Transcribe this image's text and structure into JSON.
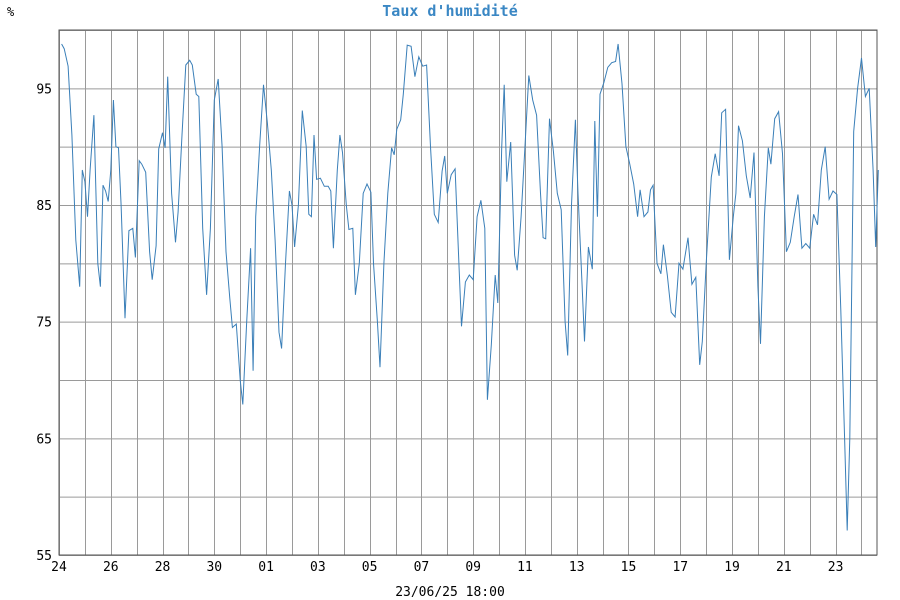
{
  "chart_data": {
    "type": "line",
    "title": "Taux d'humidité",
    "unit": "%",
    "xlabel": "23/06/25 18:00",
    "ylim": [
      55,
      100
    ],
    "y_ticks": [
      55,
      65,
      75,
      85,
      95
    ],
    "y_gridlines": [
      55,
      60,
      65,
      70,
      75,
      80,
      85,
      90,
      95,
      100
    ],
    "x_range": [
      0,
      31.6
    ],
    "x_ticks": [
      {
        "x": 0,
        "label": "24"
      },
      {
        "x": 2,
        "label": "26"
      },
      {
        "x": 4,
        "label": "28"
      },
      {
        "x": 6,
        "label": "30"
      },
      {
        "x": 8,
        "label": "01"
      },
      {
        "x": 10,
        "label": "03"
      },
      {
        "x": 12,
        "label": "05"
      },
      {
        "x": 14,
        "label": "07"
      },
      {
        "x": 16,
        "label": "09"
      },
      {
        "x": 18,
        "label": "11"
      },
      {
        "x": 20,
        "label": "13"
      },
      {
        "x": 22,
        "label": "15"
      },
      {
        "x": 24,
        "label": "17"
      },
      {
        "x": 26,
        "label": "19"
      },
      {
        "x": 28,
        "label": "21"
      },
      {
        "x": 30,
        "label": "23"
      }
    ],
    "grid": true,
    "series": [
      {
        "color": "#3a7fb8",
        "points": [
          [
            0.1,
            98.8
          ],
          [
            0.2,
            98.4
          ],
          [
            0.35,
            96.9
          ],
          [
            0.5,
            91
          ],
          [
            0.65,
            82
          ],
          [
            0.8,
            78
          ],
          [
            0.9,
            88
          ],
          [
            1.0,
            87
          ],
          [
            1.1,
            84
          ],
          [
            1.2,
            88
          ],
          [
            1.35,
            92.7
          ],
          [
            1.5,
            80
          ],
          [
            1.6,
            78
          ],
          [
            1.7,
            86.7
          ],
          [
            1.8,
            86.2
          ],
          [
            1.9,
            85.3
          ],
          [
            2.0,
            88
          ],
          [
            2.1,
            94
          ],
          [
            2.2,
            90
          ],
          [
            2.3,
            89.9
          ],
          [
            2.4,
            85
          ],
          [
            2.55,
            75.3
          ],
          [
            2.7,
            82.8
          ],
          [
            2.85,
            83
          ],
          [
            2.95,
            80.5
          ],
          [
            3.1,
            88.8
          ],
          [
            3.2,
            88.5
          ],
          [
            3.35,
            87.8
          ],
          [
            3.5,
            81
          ],
          [
            3.6,
            78.6
          ],
          [
            3.75,
            81.5
          ],
          [
            3.85,
            89.8
          ],
          [
            4.0,
            91.2
          ],
          [
            4.1,
            89.9
          ],
          [
            4.2,
            96
          ],
          [
            4.35,
            86
          ],
          [
            4.5,
            81.8
          ],
          [
            4.6,
            84.4
          ],
          [
            4.75,
            91
          ],
          [
            4.9,
            97
          ],
          [
            5.05,
            97.4
          ],
          [
            5.15,
            97
          ],
          [
            5.3,
            94.5
          ],
          [
            5.4,
            94.3
          ],
          [
            5.55,
            83
          ],
          [
            5.7,
            77.3
          ],
          [
            5.85,
            83
          ],
          [
            6.0,
            94
          ],
          [
            6.15,
            95.8
          ],
          [
            6.3,
            90
          ],
          [
            6.45,
            81
          ],
          [
            6.6,
            77
          ],
          [
            6.7,
            74.5
          ],
          [
            6.85,
            74.8
          ],
          [
            7.0,
            70
          ],
          [
            7.1,
            67.9
          ],
          [
            7.25,
            75
          ],
          [
            7.4,
            81.3
          ],
          [
            7.5,
            70.8
          ],
          [
            7.6,
            84
          ],
          [
            7.75,
            90
          ],
          [
            7.9,
            95.3
          ],
          [
            8.05,
            92
          ],
          [
            8.2,
            88
          ],
          [
            8.35,
            82
          ],
          [
            8.5,
            74.1
          ],
          [
            8.6,
            72.7
          ],
          [
            8.75,
            80
          ],
          [
            8.9,
            86.2
          ],
          [
            9.0,
            85
          ],
          [
            9.1,
            81.4
          ],
          [
            9.25,
            85
          ],
          [
            9.4,
            93.1
          ],
          [
            9.55,
            90
          ],
          [
            9.65,
            84.2
          ],
          [
            9.75,
            84
          ],
          [
            9.85,
            91
          ],
          [
            9.95,
            87.2
          ],
          [
            10.1,
            87.3
          ],
          [
            10.25,
            86.6
          ],
          [
            10.4,
            86.6
          ],
          [
            10.5,
            86.2
          ],
          [
            10.6,
            81.3
          ],
          [
            10.75,
            88
          ],
          [
            10.85,
            91
          ],
          [
            10.95,
            89.5
          ],
          [
            11.1,
            85
          ],
          [
            11.2,
            82.9
          ],
          [
            11.35,
            83
          ],
          [
            11.45,
            77.3
          ],
          [
            11.6,
            80
          ],
          [
            11.75,
            86
          ],
          [
            11.9,
            86.8
          ],
          [
            12.05,
            86.1
          ],
          [
            12.15,
            80
          ],
          [
            12.3,
            75
          ],
          [
            12.4,
            71.1
          ],
          [
            12.55,
            80
          ],
          [
            12.7,
            86
          ],
          [
            12.85,
            89.9
          ],
          [
            12.95,
            89.3
          ],
          [
            13.05,
            91.5
          ],
          [
            13.2,
            92.3
          ],
          [
            13.3,
            94.5
          ],
          [
            13.45,
            98.7
          ],
          [
            13.6,
            98.6
          ],
          [
            13.75,
            96
          ],
          [
            13.9,
            97.7
          ],
          [
            14.05,
            96.9
          ],
          [
            14.2,
            97
          ],
          [
            14.35,
            90
          ],
          [
            14.5,
            84.2
          ],
          [
            14.65,
            83.5
          ],
          [
            14.8,
            87.9
          ],
          [
            14.9,
            89.2
          ],
          [
            15.0,
            86
          ],
          [
            15.15,
            87.6
          ],
          [
            15.3,
            88.1
          ],
          [
            15.45,
            80
          ],
          [
            15.55,
            74.6
          ],
          [
            15.7,
            78.4
          ],
          [
            15.85,
            79
          ],
          [
            16.0,
            78.6
          ],
          [
            16.15,
            84
          ],
          [
            16.3,
            85.4
          ],
          [
            16.45,
            83
          ],
          [
            16.55,
            68.3
          ],
          [
            16.7,
            73
          ],
          [
            16.85,
            79
          ],
          [
            16.95,
            76.6
          ],
          [
            17.1,
            89.9
          ],
          [
            17.2,
            95.3
          ],
          [
            17.3,
            87
          ],
          [
            17.45,
            90.4
          ],
          [
            17.6,
            80.7
          ],
          [
            17.7,
            79.4
          ],
          [
            17.85,
            84
          ],
          [
            18.0,
            89.9
          ],
          [
            18.15,
            96.1
          ],
          [
            18.3,
            94
          ],
          [
            18.45,
            92.7
          ],
          [
            18.6,
            86
          ],
          [
            18.7,
            82.2
          ],
          [
            18.8,
            82.1
          ],
          [
            18.95,
            92.4
          ],
          [
            19.1,
            89.6
          ],
          [
            19.25,
            86
          ],
          [
            19.4,
            84.6
          ],
          [
            19.55,
            75
          ],
          [
            19.65,
            72.1
          ],
          [
            19.8,
            85
          ],
          [
            19.95,
            92.3
          ],
          [
            20.05,
            86
          ],
          [
            20.2,
            78.5
          ],
          [
            20.3,
            73.3
          ],
          [
            20.45,
            81.4
          ],
          [
            20.6,
            79.5
          ],
          [
            20.7,
            92.2
          ],
          [
            20.8,
            84
          ],
          [
            20.9,
            94.5
          ],
          [
            21.05,
            95.5
          ],
          [
            21.2,
            96.8
          ],
          [
            21.35,
            97.2
          ],
          [
            21.5,
            97.3
          ],
          [
            21.6,
            98.8
          ],
          [
            21.75,
            95.4
          ],
          [
            21.9,
            90
          ],
          [
            22.05,
            88.5
          ],
          [
            22.2,
            86.8
          ],
          [
            22.35,
            84
          ],
          [
            22.45,
            86.3
          ],
          [
            22.6,
            84
          ],
          [
            22.75,
            84.4
          ],
          [
            22.85,
            86.3
          ],
          [
            22.95,
            86.7
          ],
          [
            23.1,
            80
          ],
          [
            23.25,
            79.1
          ],
          [
            23.35,
            81.6
          ],
          [
            23.5,
            79
          ],
          [
            23.65,
            75.8
          ],
          [
            23.8,
            75.4
          ],
          [
            23.95,
            80
          ],
          [
            24.1,
            79.5
          ],
          [
            24.3,
            82.2
          ],
          [
            24.45,
            78.2
          ],
          [
            24.6,
            78.8
          ],
          [
            24.75,
            71.3
          ],
          [
            24.85,
            73.3
          ],
          [
            25.0,
            80
          ],
          [
            25.2,
            87.4
          ],
          [
            25.35,
            89.4
          ],
          [
            25.5,
            87.5
          ],
          [
            25.6,
            92.9
          ],
          [
            25.75,
            93.2
          ],
          [
            25.9,
            80.3
          ],
          [
            26.05,
            84
          ],
          [
            26.15,
            86
          ],
          [
            26.25,
            91.8
          ],
          [
            26.4,
            90.5
          ],
          [
            26.55,
            87.5
          ],
          [
            26.7,
            85.6
          ],
          [
            26.85,
            89.5
          ],
          [
            27.0,
            78
          ],
          [
            27.1,
            73.1
          ],
          [
            27.25,
            84
          ],
          [
            27.4,
            89.9
          ],
          [
            27.5,
            88.5
          ],
          [
            27.65,
            92.4
          ],
          [
            27.8,
            93
          ],
          [
            27.95,
            89.4
          ],
          [
            28.1,
            81
          ],
          [
            28.25,
            81.8
          ],
          [
            28.4,
            84
          ],
          [
            28.55,
            85.9
          ],
          [
            28.7,
            81.3
          ],
          [
            28.85,
            81.7
          ],
          [
            29.0,
            81.3
          ],
          [
            29.15,
            84.2
          ],
          [
            29.3,
            83.3
          ],
          [
            29.45,
            88
          ],
          [
            29.6,
            90
          ],
          [
            29.75,
            85.5
          ],
          [
            29.9,
            86.2
          ],
          [
            30.05,
            85.9
          ],
          [
            30.2,
            76
          ],
          [
            30.35,
            65
          ],
          [
            30.45,
            57.1
          ],
          [
            30.55,
            65
          ],
          [
            30.7,
            91.3
          ],
          [
            30.85,
            95
          ],
          [
            31.0,
            97.6
          ],
          [
            31.15,
            94.3
          ],
          [
            31.3,
            95
          ],
          [
            31.45,
            88
          ],
          [
            31.55,
            81.4
          ],
          [
            31.65,
            88
          ]
        ]
      }
    ]
  }
}
